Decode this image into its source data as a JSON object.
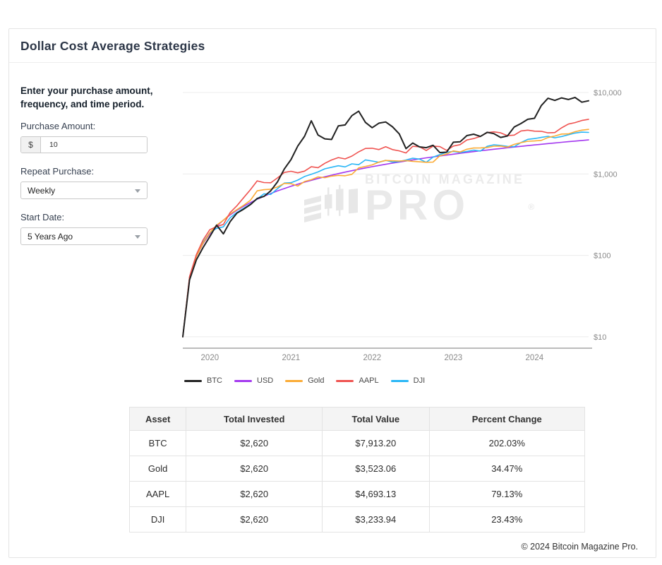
{
  "window": {
    "title": "Dollar Cost Average Strategies"
  },
  "form": {
    "intro": "Enter your purchase amount, frequency, and time period.",
    "purchase_amount": {
      "label": "Purchase Amount:",
      "prefix": "$",
      "value": "10"
    },
    "repeat_purchase": {
      "label": "Repeat Purchase:",
      "value": "Weekly"
    },
    "start_date": {
      "label": "Start Date:",
      "value": "5 Years Ago"
    }
  },
  "watermark": {
    "line1": "BITCOIN MAGAZINE",
    "line2": "PRO",
    "registered": "®"
  },
  "chart_data": {
    "type": "line",
    "title": "",
    "x_start": "Sep 2019",
    "x_end": "Sep 2024",
    "months_span": 60,
    "grid": true,
    "legend_position": "bottom-left",
    "y_axis": {
      "scale": "log",
      "ylim": [
        10,
        10000
      ],
      "ticks": [
        {
          "label": "$10,000",
          "value": 10000
        },
        {
          "label": "$1,000",
          "value": 1000
        },
        {
          "label": "$100",
          "value": 100
        },
        {
          "label": "$10",
          "value": 10
        }
      ]
    },
    "x_axis": {
      "ticks": [
        {
          "label": "2020",
          "month": 4
        },
        {
          "label": "2021",
          "month": 16
        },
        {
          "label": "2022",
          "month": 28
        },
        {
          "label": "2023",
          "month": 40
        },
        {
          "label": "2024",
          "month": 52
        }
      ]
    },
    "series": [
      {
        "name": "USD",
        "color": "#a438ef",
        "values": [
          10,
          53,
          97,
          140,
          184,
          227,
          271,
          314,
          358,
          401,
          445,
          488,
          532,
          575,
          619,
          662,
          706,
          749,
          793,
          836,
          880,
          923,
          967,
          1010,
          1054,
          1097,
          1141,
          1184,
          1228,
          1271,
          1315,
          1358,
          1402,
          1445,
          1489,
          1532,
          1576,
          1619,
          1663,
          1706,
          1750,
          1793,
          1837,
          1880,
          1924,
          1967,
          2011,
          2054,
          2098,
          2141,
          2185,
          2228,
          2272,
          2315,
          2359,
          2402,
          2446,
          2489,
          2533,
          2576,
          2620
        ]
      },
      {
        "name": "DJI",
        "color": "#29b6f6",
        "values": [
          10,
          54,
          100,
          146,
          190,
          215,
          224,
          290,
          337,
          380,
          426,
          492,
          571,
          560,
          660,
          773,
          780,
          840,
          930,
          990,
          1060,
          1158,
          1210,
          1260,
          1220,
          1330,
          1300,
          1487,
          1440,
          1390,
          1470,
          1400,
          1420,
          1484,
          1560,
          1520,
          1390,
          1610,
          1730,
          1846,
          1890,
          1830,
          1890,
          1960,
          1910,
          2183,
          2280,
          2240,
          2180,
          2160,
          2430,
          2658,
          2720,
          2810,
          2900,
          2780,
          2880,
          3022,
          3180,
          3260,
          3233.94
        ]
      },
      {
        "name": "Gold",
        "color": "#fbab35",
        "values": [
          10,
          54,
          97,
          142,
          190,
          235,
          270,
          322,
          365,
          412,
          475,
          620,
          640,
          650,
          693,
          765,
          760,
          710,
          807,
          850,
          920,
          900,
          940,
          960,
          950,
          990,
          1187,
          1238,
          1290,
          1400,
          1465,
          1450,
          1440,
          1460,
          1430,
          1410,
          1390,
          1400,
          1675,
          1754,
          1916,
          1860,
          2010,
          2080,
          2090,
          2110,
          2190,
          2200,
          2130,
          2310,
          2420,
          2522,
          2540,
          2580,
          2800,
          2920,
          3089,
          3100,
          3300,
          3450,
          3523.06
        ]
      },
      {
        "name": "AAPL",
        "color": "#ef5350",
        "values": [
          10,
          55,
          102,
          155,
          207,
          226,
          240,
          336,
          407,
          512,
          640,
          822,
          783,
          779,
          894,
          1043,
          1078,
          1032,
          1084,
          1225,
          1195,
          1353,
          1485,
          1590,
          1529,
          1658,
          1868,
          2058,
          2067,
          1992,
          2156,
          1990,
          1920,
          1809,
          2183,
          2159,
          1941,
          2196,
          2167,
          1947,
          2200,
          2290,
          2613,
          2720,
          2892,
          3214,
          3290,
          3199,
          2954,
          2997,
          3373,
          3452,
          3352,
          3341,
          3200,
          3224,
          3685,
          4093,
          4272,
          4531,
          4693.13
        ]
      },
      {
        "name": "BTC",
        "color": "#222222",
        "values": [
          10,
          50,
          88,
          125,
          170,
          235,
          184,
          260,
          330,
          370,
          420,
          500,
          530,
          620,
          800,
          1150,
          1500,
          2200,
          2900,
          4500,
          3000,
          2700,
          2650,
          3900,
          4000,
          5200,
          5900,
          4300,
          3700,
          4200,
          4350,
          3800,
          3100,
          2050,
          2400,
          2150,
          2100,
          2250,
          1830,
          1850,
          2450,
          2480,
          2960,
          3080,
          2890,
          3240,
          3130,
          2810,
          2930,
          3770,
          4160,
          4690,
          4820,
          6900,
          8500,
          8000,
          8600,
          8200,
          8700,
          7600,
          7913.2
        ]
      }
    ],
    "legend_order": [
      "BTC",
      "USD",
      "Gold",
      "AAPL",
      "DJI"
    ]
  },
  "table": {
    "headers": [
      "Asset",
      "Total Invested",
      "Total Value",
      "Percent Change"
    ],
    "rows": [
      [
        "BTC",
        "$2,620",
        "$7,913.20",
        "202.03%"
      ],
      [
        "Gold",
        "$2,620",
        "$3,523.06",
        "34.47%"
      ],
      [
        "AAPL",
        "$2,620",
        "$4,693.13",
        "79.13%"
      ],
      [
        "DJI",
        "$2,620",
        "$3,233.94",
        "23.43%"
      ]
    ]
  },
  "footer": {
    "copyright": "© 2024 Bitcoin Magazine Pro."
  }
}
